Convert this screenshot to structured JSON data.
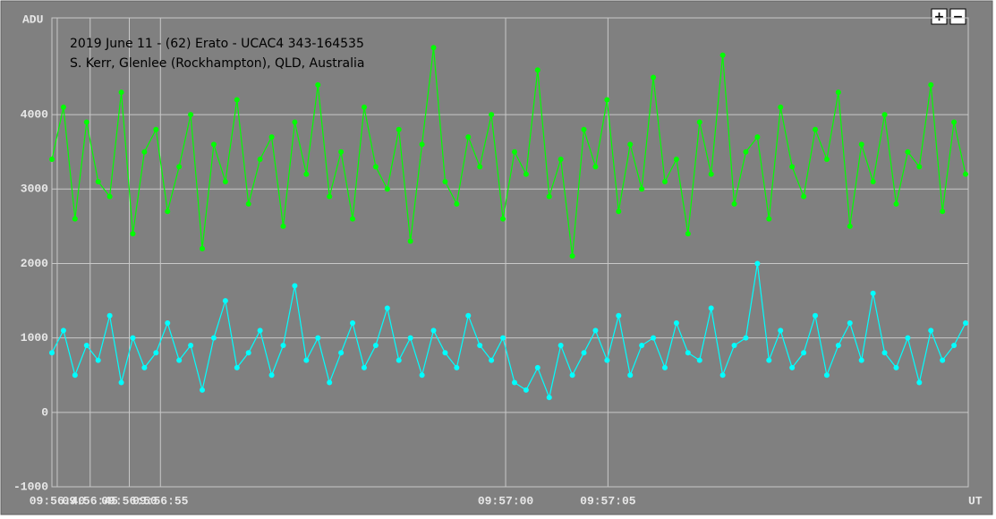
{
  "chart_data": {
    "type": "line",
    "title": "2019 June 11 - (62) Erato - UCAC4 343-164535",
    "subtitle": "S. Kerr, Glenlee (Rockhampton), QLD, Australia",
    "y_label": "ADU",
    "x_label": "UT",
    "x": [
      0,
      13,
      26,
      39,
      52,
      65,
      78,
      91,
      104,
      117,
      130,
      143,
      156,
      169,
      182,
      195,
      208,
      221,
      234,
      247,
      260,
      273,
      286,
      299,
      312,
      325,
      338,
      351,
      364,
      377,
      390,
      403,
      416,
      429,
      442,
      455,
      468,
      481,
      494,
      507,
      520,
      533,
      546,
      559,
      572,
      585,
      598,
      611,
      624,
      637,
      650,
      663,
      676,
      689,
      702,
      715,
      728,
      741,
      754,
      767,
      780,
      793,
      806,
      819,
      832,
      845,
      858,
      871,
      884,
      897,
      910,
      923,
      936,
      949,
      962,
      975,
      988,
      1001,
      1014,
      1027
    ],
    "xlim": [
      0,
      1030
    ],
    "xticks": [
      {
        "value": 6,
        "label": "09:56:40"
      },
      {
        "value": 43,
        "label": "09:56:45"
      },
      {
        "value": 87,
        "label": "09:56:50"
      },
      {
        "value": 122,
        "label": "09:56:55"
      },
      {
        "value": 510,
        "label": "09:57:00"
      },
      {
        "value": 625,
        "label": "09:57:05"
      }
    ],
    "ylim": [
      -1000,
      5300
    ],
    "yticks": [
      -1000,
      0,
      1000,
      2000,
      3000,
      4000
    ],
    "grid": true,
    "series": [
      {
        "color": "#00ff00",
        "values": [
          3400,
          4100,
          2600,
          3900,
          3100,
          2900,
          4300,
          2400,
          3500,
          3800,
          2700,
          3300,
          4000,
          2200,
          3600,
          3100,
          4200,
          2800,
          3400,
          3700,
          2500,
          3900,
          3200,
          4400,
          2900,
          3500,
          2600,
          4100,
          3300,
          3000,
          3800,
          2300,
          3600,
          4900,
          3100,
          2800,
          3700,
          3300,
          4000,
          2600,
          3500,
          3200,
          4600,
          2900,
          3400,
          2100,
          3800,
          3300,
          4200,
          2700,
          3600,
          3000,
          4500,
          3100,
          3400,
          2400,
          3900,
          3200,
          4800,
          2800,
          3500,
          3700,
          2600,
          4100,
          3300,
          2900,
          3800,
          3400,
          4300,
          2500,
          3600,
          3100,
          4000,
          2800,
          3500,
          3300,
          4400,
          2700,
          3900,
          3200
        ]
      },
      {
        "color": "#00ffff",
        "values": [
          800,
          1100,
          500,
          900,
          700,
          1300,
          400,
          1000,
          600,
          800,
          1200,
          700,
          900,
          300,
          1000,
          1500,
          600,
          800,
          1100,
          500,
          900,
          1700,
          700,
          1000,
          400,
          800,
          1200,
          600,
          900,
          1400,
          700,
          1000,
          500,
          1100,
          800,
          600,
          1300,
          900,
          700,
          1000,
          400,
          300,
          600,
          200,
          900,
          500,
          800,
          1100,
          700,
          1300,
          500,
          900,
          1000,
          600,
          1200,
          800,
          700,
          1400,
          500,
          900,
          1000,
          2000,
          700,
          1100,
          600,
          800,
          1300,
          500,
          900,
          1200,
          700,
          1600,
          800,
          600,
          1000,
          400,
          1100,
          700,
          900,
          1200
        ]
      }
    ],
    "buttons": [
      "+",
      "−"
    ]
  }
}
